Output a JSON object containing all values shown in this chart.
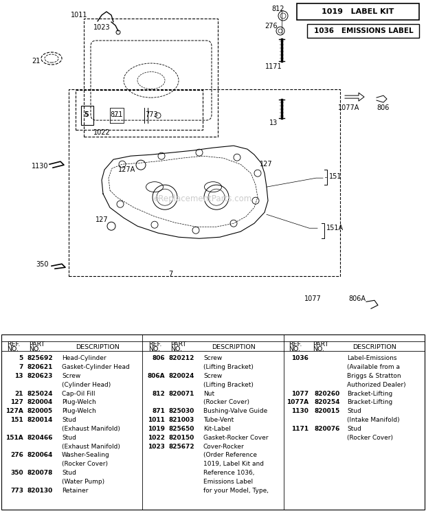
{
  "bg_color": "#ffffff",
  "fig_width": 6.2,
  "fig_height": 7.44,
  "dpi": 100,
  "label_kit_text": "1019   LABEL KIT",
  "emissions_label_text": "1036   EMISSIONS LABEL",
  "watermark": "eReplacementParts.com",
  "col1_data": [
    [
      "5",
      "825692",
      "Head-Cylinder"
    ],
    [
      "7",
      "820621",
      "Gasket-Cylinder Head"
    ],
    [
      "13",
      "820623",
      "Screw"
    ],
    [
      "",
      "",
      "(Cylinder Head)"
    ],
    [
      "21",
      "825024",
      "Cap-Oil Fill"
    ],
    [
      "127",
      "820004",
      "Plug-Welch"
    ],
    [
      "127A",
      "820005",
      "Plug-Welch"
    ],
    [
      "151",
      "820014",
      "Stud"
    ],
    [
      "",
      "",
      "(Exhaust Manifold)"
    ],
    [
      "151A",
      "820466",
      "Stud"
    ],
    [
      "",
      "",
      "(Exhaust Manifold)"
    ],
    [
      "276",
      "820064",
      "Washer-Sealing"
    ],
    [
      "",
      "",
      "(Rocker Cover)"
    ],
    [
      "350",
      "820078",
      "Stud"
    ],
    [
      "",
      "",
      "(Water Pump)"
    ],
    [
      "773",
      "820130",
      "Retainer"
    ]
  ],
  "col2_data": [
    [
      "806",
      "820212",
      "Screw"
    ],
    [
      "",
      "",
      "(Lifting Bracket)"
    ],
    [
      "806A",
      "820024",
      "Screw"
    ],
    [
      "",
      "",
      "(Lifting Bracket)"
    ],
    [
      "812",
      "820071",
      "Nut"
    ],
    [
      "",
      "",
      "(Rocker Cover)"
    ],
    [
      "871",
      "825030",
      "Bushing-Valve Guide"
    ],
    [
      "1011",
      "821003",
      "Tube-Vent"
    ],
    [
      "1019",
      "825650",
      "Kit-Label"
    ],
    [
      "1022",
      "820150",
      "Gasket-Rocker Cover"
    ],
    [
      "1023",
      "825672",
      "Cover-Rocker"
    ],
    [
      "",
      "",
      "(Order Reference"
    ],
    [
      "",
      "",
      "1019, Label Kit and"
    ],
    [
      "",
      "",
      "Reference 1036,"
    ],
    [
      "",
      "",
      "Emissions Label"
    ],
    [
      "",
      "",
      "for your Model, Type,"
    ]
  ],
  "col3_data": [
    [
      "1036",
      "",
      "Label-Emissions"
    ],
    [
      "",
      "",
      "(Available from a"
    ],
    [
      "",
      "",
      "Briggs & Stratton"
    ],
    [
      "",
      "",
      "Authorized Dealer)"
    ],
    [
      "1077",
      "820260",
      "Bracket-Lifting"
    ],
    [
      "1077A",
      "820254",
      "Bracket-Lifting"
    ],
    [
      "1130",
      "820015",
      "Stud"
    ],
    [
      "",
      "",
      "(Intake Manifold)"
    ],
    [
      "1171",
      "820076",
      "Stud"
    ],
    [
      "",
      "",
      "(Rocker Cover)"
    ]
  ]
}
